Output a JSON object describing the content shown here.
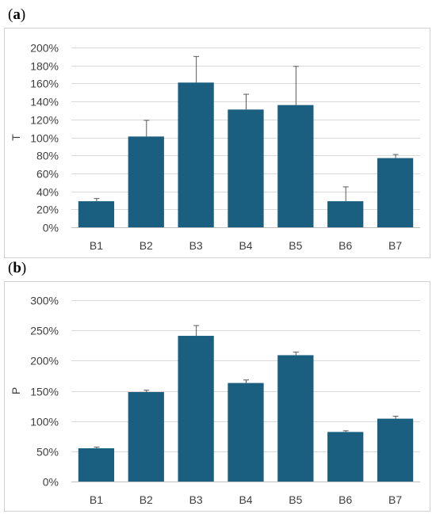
{
  "chart_data": [
    {
      "type": "bar",
      "panel_label": "a",
      "categories": [
        "B1",
        "B2",
        "B3",
        "B4",
        "B5",
        "B6",
        "B7"
      ],
      "values": [
        29,
        101,
        161,
        131,
        136,
        29,
        77
      ],
      "errors": [
        3,
        18,
        29,
        17,
        43,
        16,
        4
      ],
      "ylabel": "T",
      "yticks": [
        "0%",
        "20%",
        "40%",
        "60%",
        "80%",
        "100%",
        "120%",
        "140%",
        "160%",
        "180%",
        "200%"
      ],
      "ylim": [
        0,
        200
      ],
      "grid": true,
      "bar_color": "#1a5f7f"
    },
    {
      "type": "bar",
      "panel_label": "b",
      "categories": [
        "B1",
        "B2",
        "B3",
        "B4",
        "B5",
        "B6",
        "B7"
      ],
      "values": [
        55,
        148,
        241,
        163,
        209,
        82,
        104
      ],
      "errors": [
        2,
        3,
        17,
        5,
        5,
        2,
        4
      ],
      "ylabel": "P",
      "yticks": [
        "0%",
        "50%",
        "100%",
        "150%",
        "200%",
        "250%",
        "300%"
      ],
      "ylim": [
        0,
        300
      ],
      "grid": true,
      "bar_color": "#1a5f7f"
    }
  ]
}
